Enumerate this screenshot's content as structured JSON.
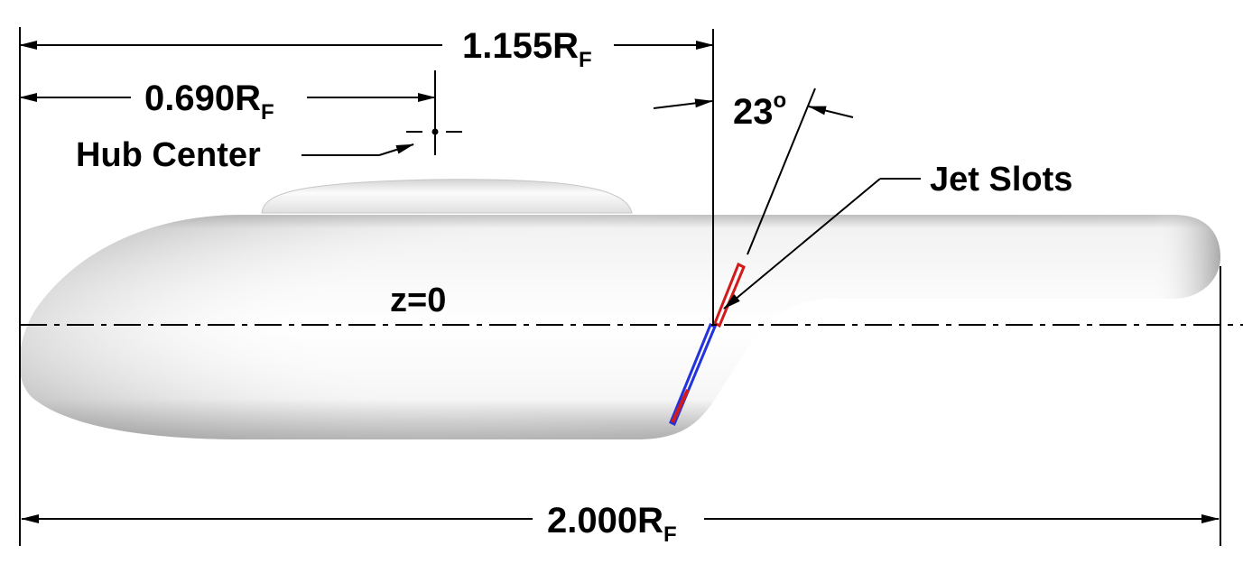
{
  "dimensions": {
    "overall_length": {
      "value": "2.000R",
      "subscript": "F"
    },
    "jet_station": {
      "value": "1.155R",
      "subscript": "F"
    },
    "hub_station": {
      "value": "0.690R",
      "subscript": "F"
    }
  },
  "angle": {
    "value": "23",
    "unit": "o"
  },
  "labels": {
    "hub_center": "Hub Center",
    "jet_slots": "Jet Slots",
    "waterline": "z=0"
  },
  "colors": {
    "line": "#000000",
    "jet_slot_upper": "#d11a1a",
    "jet_slot_lower": "#2233dd",
    "body_light": "#ffffff",
    "body_shadow": "#9a9a9a"
  }
}
